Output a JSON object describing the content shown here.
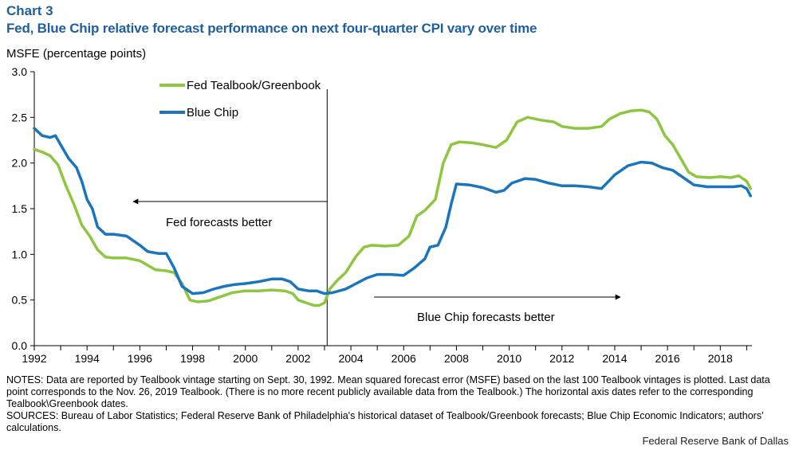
{
  "header": {
    "chart_number": "Chart 3",
    "title": "Fed, Blue Chip relative forecast performance on next four-quarter CPI vary over time",
    "units": "MSFE (percentage points)"
  },
  "notes": {
    "notes_text": "NOTES: Data are reported by Tealbook vintage starting on Sept. 30, 1992. Mean squared forecast error (MSFE) based on the last 100 Tealbook vintages is plotted. Last data point corresponds to the Nov. 26, 2019 Tealbook. (There is no more recent publicly available data from the Tealbook.) The horizontal axis dates refer to the corresponding Tealbook\\Greenbook dates.",
    "sources_text": "SOURCES: Bureau of Labor Statistics; Federal Reserve Bank of Philadelphia's historical dataset of Tealbook/Greenbook forecasts; Blue Chip Economic Indicators; authors' calculations.",
    "credit": "Federal Reserve Bank of Dallas"
  },
  "colors": {
    "fed": "#8DC63F",
    "blue_chip": "#1B75BC",
    "title": "#1F5F9F"
  },
  "chart_data": {
    "type": "line",
    "ylabel": "MSFE (percentage points)",
    "xlim": [
      1992,
      2019.2
    ],
    "ylim": [
      0,
      3.0
    ],
    "yticks": [
      "0.0",
      "0.5",
      "1.0",
      "1.5",
      "2.0",
      "2.5",
      "3.0"
    ],
    "xticks": [
      "1992",
      "1994",
      "1996",
      "1998",
      "2000",
      "2002",
      "2004",
      "2006",
      "2008",
      "2010",
      "2012",
      "2014",
      "2016",
      "2018"
    ],
    "grid": false,
    "legend_position": "top-center",
    "vertical_line_x": 2003.1,
    "annotations": [
      {
        "text": "Fed forecasts better",
        "arrow": "left"
      },
      {
        "text": "Blue Chip forecasts better",
        "arrow": "right"
      }
    ],
    "series": [
      {
        "name": "Fed Tealbook/Greenbook",
        "color": "#8DC63F",
        "points": [
          [
            1992.0,
            2.15
          ],
          [
            1992.3,
            2.12
          ],
          [
            1992.6,
            2.08
          ],
          [
            1992.9,
            1.98
          ],
          [
            1993.2,
            1.75
          ],
          [
            1993.5,
            1.55
          ],
          [
            1993.8,
            1.32
          ],
          [
            1994.1,
            1.2
          ],
          [
            1994.4,
            1.05
          ],
          [
            1994.7,
            0.97
          ],
          [
            1995.0,
            0.96
          ],
          [
            1995.5,
            0.96
          ],
          [
            1996.0,
            0.93
          ],
          [
            1996.3,
            0.88
          ],
          [
            1996.6,
            0.83
          ],
          [
            1997.0,
            0.82
          ],
          [
            1997.3,
            0.8
          ],
          [
            1997.6,
            0.68
          ],
          [
            1997.9,
            0.5
          ],
          [
            1998.2,
            0.48
          ],
          [
            1998.6,
            0.49
          ],
          [
            1999.0,
            0.53
          ],
          [
            1999.5,
            0.58
          ],
          [
            2000.0,
            0.6
          ],
          [
            2000.5,
            0.6
          ],
          [
            2001.0,
            0.61
          ],
          [
            2001.5,
            0.6
          ],
          [
            2001.8,
            0.57
          ],
          [
            2002.0,
            0.5
          ],
          [
            2002.3,
            0.47
          ],
          [
            2002.6,
            0.44
          ],
          [
            2002.8,
            0.44
          ],
          [
            2003.0,
            0.47
          ],
          [
            2003.2,
            0.62
          ],
          [
            2003.5,
            0.72
          ],
          [
            2003.8,
            0.8
          ],
          [
            2004.2,
            0.98
          ],
          [
            2004.5,
            1.08
          ],
          [
            2004.8,
            1.1
          ],
          [
            2005.3,
            1.09
          ],
          [
            2005.8,
            1.1
          ],
          [
            2006.2,
            1.2
          ],
          [
            2006.5,
            1.42
          ],
          [
            2006.8,
            1.48
          ],
          [
            2007.2,
            1.6
          ],
          [
            2007.5,
            2.0
          ],
          [
            2007.8,
            2.2
          ],
          [
            2008.1,
            2.23
          ],
          [
            2008.6,
            2.22
          ],
          [
            2009.0,
            2.2
          ],
          [
            2009.5,
            2.17
          ],
          [
            2009.9,
            2.25
          ],
          [
            2010.3,
            2.45
          ],
          [
            2010.7,
            2.5
          ],
          [
            2011.2,
            2.47
          ],
          [
            2011.7,
            2.45
          ],
          [
            2012.0,
            2.4
          ],
          [
            2012.5,
            2.38
          ],
          [
            2013.0,
            2.38
          ],
          [
            2013.5,
            2.4
          ],
          [
            2013.8,
            2.48
          ],
          [
            2014.2,
            2.54
          ],
          [
            2014.6,
            2.57
          ],
          [
            2015.0,
            2.58
          ],
          [
            2015.3,
            2.56
          ],
          [
            2015.6,
            2.48
          ],
          [
            2015.9,
            2.3
          ],
          [
            2016.2,
            2.2
          ],
          [
            2016.5,
            2.05
          ],
          [
            2016.8,
            1.9
          ],
          [
            2017.1,
            1.85
          ],
          [
            2017.6,
            1.84
          ],
          [
            2018.0,
            1.85
          ],
          [
            2018.4,
            1.84
          ],
          [
            2018.7,
            1.86
          ],
          [
            2019.0,
            1.8
          ],
          [
            2019.15,
            1.72
          ]
        ]
      },
      {
        "name": "Blue Chip",
        "color": "#1B75BC",
        "points": [
          [
            1992.0,
            2.38
          ],
          [
            1992.3,
            2.3
          ],
          [
            1992.6,
            2.28
          ],
          [
            1992.8,
            2.3
          ],
          [
            1993.0,
            2.2
          ],
          [
            1993.3,
            2.05
          ],
          [
            1993.6,
            1.95
          ],
          [
            1993.8,
            1.8
          ],
          [
            1994.0,
            1.6
          ],
          [
            1994.2,
            1.5
          ],
          [
            1994.4,
            1.3
          ],
          [
            1994.7,
            1.22
          ],
          [
            1995.0,
            1.22
          ],
          [
            1995.5,
            1.2
          ],
          [
            1996.0,
            1.1
          ],
          [
            1996.3,
            1.03
          ],
          [
            1996.7,
            1.01
          ],
          [
            1997.0,
            1.01
          ],
          [
            1997.3,
            0.85
          ],
          [
            1997.6,
            0.65
          ],
          [
            1998.0,
            0.57
          ],
          [
            1998.4,
            0.58
          ],
          [
            1998.8,
            0.62
          ],
          [
            1999.2,
            0.65
          ],
          [
            1999.6,
            0.67
          ],
          [
            2000.0,
            0.68
          ],
          [
            2000.5,
            0.7
          ],
          [
            2001.0,
            0.73
          ],
          [
            2001.4,
            0.73
          ],
          [
            2001.7,
            0.7
          ],
          [
            2002.0,
            0.62
          ],
          [
            2002.4,
            0.6
          ],
          [
            2002.7,
            0.6
          ],
          [
            2003.0,
            0.57
          ],
          [
            2003.3,
            0.58
          ],
          [
            2003.8,
            0.62
          ],
          [
            2004.2,
            0.68
          ],
          [
            2004.6,
            0.74
          ],
          [
            2005.0,
            0.78
          ],
          [
            2005.5,
            0.78
          ],
          [
            2006.0,
            0.77
          ],
          [
            2006.4,
            0.85
          ],
          [
            2006.8,
            0.95
          ],
          [
            2007.0,
            1.08
          ],
          [
            2007.3,
            1.1
          ],
          [
            2007.6,
            1.3
          ],
          [
            2007.8,
            1.55
          ],
          [
            2008.0,
            1.77
          ],
          [
            2008.5,
            1.76
          ],
          [
            2009.0,
            1.73
          ],
          [
            2009.5,
            1.68
          ],
          [
            2009.8,
            1.7
          ],
          [
            2010.1,
            1.78
          ],
          [
            2010.6,
            1.83
          ],
          [
            2011.0,
            1.82
          ],
          [
            2011.5,
            1.78
          ],
          [
            2012.0,
            1.75
          ],
          [
            2012.5,
            1.75
          ],
          [
            2013.0,
            1.74
          ],
          [
            2013.5,
            1.72
          ],
          [
            2014.0,
            1.87
          ],
          [
            2014.5,
            1.97
          ],
          [
            2015.0,
            2.01
          ],
          [
            2015.4,
            2.0
          ],
          [
            2015.8,
            1.95
          ],
          [
            2016.2,
            1.92
          ],
          [
            2016.6,
            1.84
          ],
          [
            2017.0,
            1.76
          ],
          [
            2017.5,
            1.74
          ],
          [
            2018.0,
            1.74
          ],
          [
            2018.5,
            1.74
          ],
          [
            2018.8,
            1.75
          ],
          [
            2019.0,
            1.72
          ],
          [
            2019.15,
            1.64
          ]
        ]
      }
    ]
  }
}
